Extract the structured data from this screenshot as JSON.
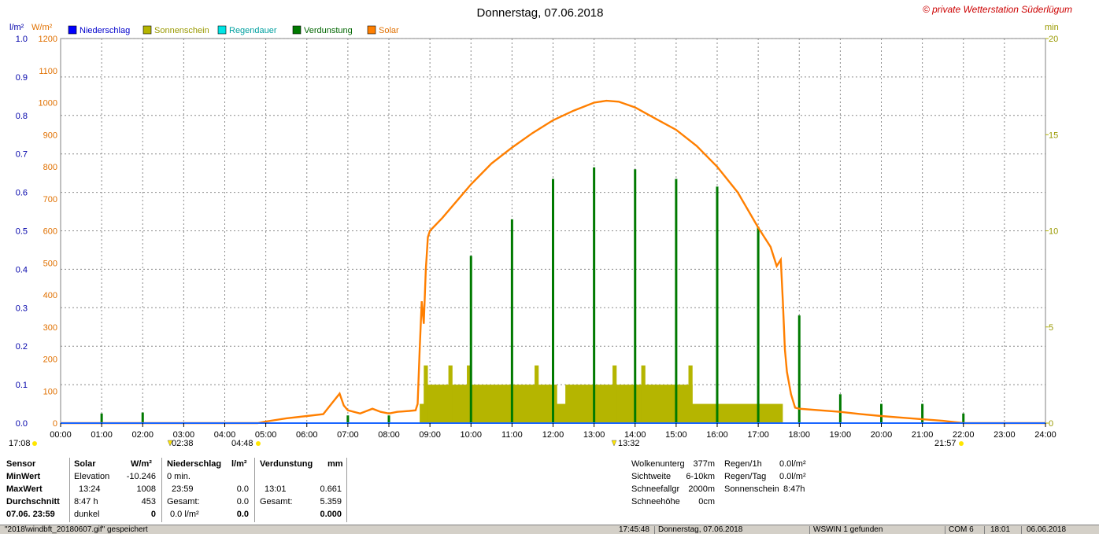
{
  "title": "Donnerstag, 07.06.2018",
  "copyright": "© private Wetterstation Süderlügum",
  "axes": {
    "left_outer_unit": "l/m²",
    "left_inner_unit": "W/m²",
    "right_unit": "min",
    "left_outer_ticks": [
      "0.0",
      "0.1",
      "0.2",
      "0.3",
      "0.4",
      "0.5",
      "0.6",
      "0.7",
      "0.8",
      "0.9",
      "1.0"
    ],
    "left_inner_ticks": [
      "0",
      "100",
      "200",
      "300",
      "400",
      "500",
      "600",
      "700",
      "800",
      "900",
      "1000",
      "1100",
      "1200"
    ],
    "right_ticks": [
      "0",
      "5",
      "10",
      "15",
      "20"
    ],
    "x_ticks": [
      "00:00",
      "01:00",
      "02:00",
      "03:00",
      "04:00",
      "05:00",
      "06:00",
      "07:00",
      "08:00",
      "09:00",
      "10:00",
      "11:00",
      "12:00",
      "13:00",
      "14:00",
      "15:00",
      "16:00",
      "17:00",
      "18:00",
      "19:00",
      "20:00",
      "21:00",
      "22:00",
      "23:00",
      "24:00"
    ]
  },
  "markers": {
    "moonset": "17:08",
    "moon_low": "02:38",
    "sunrise": "04:48",
    "moon_high": "13:32",
    "sunset": "21:57"
  },
  "colors": {
    "niederschlag": "#0000ff",
    "sonnenschein": "#b5b500",
    "regendauer": "#00e5e5",
    "verdunstung": "#007a00",
    "solar": "#ff7f00"
  },
  "chart_data": {
    "type": "line",
    "title": "Donnerstag, 07.06.2018",
    "x_unit": "hour of day",
    "xlim": [
      0,
      24
    ],
    "legend": [
      "Niederschlag",
      "Sonnenschein",
      "Regendauer",
      "Verdunstung",
      "Solar"
    ],
    "series": [
      {
        "name": "Solar",
        "axis": "W/m²",
        "ylim": [
          0,
          1200
        ],
        "points": [
          [
            0,
            0
          ],
          [
            4.8,
            0
          ],
          [
            5.0,
            5
          ],
          [
            5.5,
            15
          ],
          [
            6.0,
            22
          ],
          [
            6.4,
            28
          ],
          [
            6.6,
            60
          ],
          [
            6.8,
            92
          ],
          [
            6.9,
            55
          ],
          [
            7.0,
            40
          ],
          [
            7.3,
            30
          ],
          [
            7.6,
            45
          ],
          [
            7.8,
            35
          ],
          [
            8.0,
            30
          ],
          [
            8.2,
            35
          ],
          [
            8.5,
            38
          ],
          [
            8.65,
            40
          ],
          [
            8.7,
            60
          ],
          [
            8.75,
            230
          ],
          [
            8.8,
            380
          ],
          [
            8.85,
            310
          ],
          [
            8.9,
            480
          ],
          [
            8.95,
            580
          ],
          [
            9.0,
            600
          ],
          [
            9.3,
            640
          ],
          [
            9.7,
            700
          ],
          [
            10.0,
            745
          ],
          [
            10.5,
            810
          ],
          [
            11.0,
            860
          ],
          [
            11.5,
            905
          ],
          [
            12.0,
            945
          ],
          [
            12.5,
            975
          ],
          [
            13.0,
            1000
          ],
          [
            13.3,
            1006
          ],
          [
            13.6,
            1003
          ],
          [
            14.0,
            985
          ],
          [
            14.5,
            950
          ],
          [
            15.0,
            915
          ],
          [
            15.5,
            865
          ],
          [
            16.0,
            800
          ],
          [
            16.5,
            720
          ],
          [
            17.0,
            610
          ],
          [
            17.3,
            550
          ],
          [
            17.45,
            490
          ],
          [
            17.55,
            510
          ],
          [
            17.6,
            380
          ],
          [
            17.65,
            230
          ],
          [
            17.7,
            160
          ],
          [
            17.8,
            90
          ],
          [
            17.9,
            48
          ],
          [
            18.0,
            45
          ],
          [
            18.5,
            40
          ],
          [
            19.0,
            35
          ],
          [
            19.5,
            28
          ],
          [
            20.0,
            22
          ],
          [
            20.5,
            17
          ],
          [
            21.0,
            12
          ],
          [
            21.5,
            7
          ],
          [
            21.8,
            3
          ],
          [
            22.0,
            0
          ],
          [
            24,
            0
          ]
        ]
      },
      {
        "name": "Sonnenschein",
        "axis": "min",
        "ylim": [
          0,
          20
        ],
        "unit": "min",
        "segments": [
          {
            "from": 8.75,
            "to": 17.6,
            "value": 1
          },
          {
            "from": 8.85,
            "to": 12.1,
            "value": 2
          },
          {
            "from": 12.3,
            "to": 15.4,
            "value": 2
          },
          {
            "from": 8.85,
            "to": 8.95,
            "value": 3
          },
          {
            "from": 9.45,
            "to": 9.55,
            "value": 3
          },
          {
            "from": 9.9,
            "to": 9.98,
            "value": 3
          },
          {
            "from": 11.55,
            "to": 11.65,
            "value": 3
          },
          {
            "from": 13.45,
            "to": 13.55,
            "value": 3
          },
          {
            "from": 14.15,
            "to": 14.25,
            "value": 3
          },
          {
            "from": 15.3,
            "to": 15.4,
            "value": 3
          }
        ]
      },
      {
        "name": "Verdunstung",
        "axis": "min",
        "ylim": [
          0,
          20
        ],
        "spikes": [
          [
            1.0,
            0.5
          ],
          [
            2.0,
            0.55
          ],
          [
            7.0,
            0.4
          ],
          [
            8.0,
            0.4
          ],
          [
            10.0,
            8.7
          ],
          [
            11.0,
            10.6
          ],
          [
            12.0,
            12.7
          ],
          [
            13.0,
            13.3
          ],
          [
            14.0,
            13.2
          ],
          [
            15.0,
            12.7
          ],
          [
            16.0,
            12.3
          ],
          [
            17.0,
            10.2
          ],
          [
            18.0,
            5.6
          ],
          [
            19.0,
            1.5
          ],
          [
            20.0,
            1.0
          ],
          [
            21.0,
            1.0
          ],
          [
            22.0,
            0.5
          ]
        ]
      },
      {
        "name": "Niederschlag",
        "axis": "l/m²",
        "values": [
          0
        ]
      },
      {
        "name": "Regendauer",
        "axis": "min",
        "values": [
          0
        ]
      }
    ]
  },
  "stats": {
    "headers": {
      "sensor": "Sensor",
      "solar": "Solar",
      "solar_unit": "W/m²",
      "nied": "Niederschlag",
      "nied_unit": "l/m²",
      "verd": "Verdunstung",
      "verd_unit": "mm"
    },
    "row_labels": {
      "min": "MinWert",
      "max": "MaxWert",
      "avg": "Durchschnitt",
      "date": "07.06. 23:59"
    },
    "solar": {
      "min_label": "Elevation",
      "min_val": "-10.246",
      "max_label": "13:24",
      "max_val": "1008",
      "avg_label": "8:47 h",
      "avg_val": "453",
      "date_label": "dunkel",
      "date_val": "0"
    },
    "nied": {
      "min_label": "0 min.",
      "max_label": "23:59",
      "max_val": "0.0",
      "avg_label": "Gesamt:",
      "avg_val": "0.0",
      "date_label": "0.0 l/m²",
      "date_val": "0.0"
    },
    "verd": {
      "max_label": "13:01",
      "max_val": "0.661",
      "avg_label": "Gesamt:",
      "avg_val": "5.359",
      "date_val": "0.000"
    },
    "weather": [
      {
        "label": "Wolkenunterg",
        "value": "377m"
      },
      {
        "label": "Sichtweite",
        "value": "6-10km"
      },
      {
        "label": "Schneefallgr",
        "value": "2000m"
      },
      {
        "label": "Schneehöhe",
        "value": "0cm"
      }
    ],
    "rain": [
      {
        "label": "Regen/1h",
        "value": "0.0l/m²"
      },
      {
        "label": "Regen/Tag",
        "value": "0.0l/m²"
      },
      {
        "label": "Sonnenschein",
        "value": "8:47h"
      }
    ]
  },
  "statusbar": {
    "file": "\"2018\\windbft_20180607.gif\" gespeichert",
    "time": "17:45:48",
    "date": "Donnerstag, 07.06.2018",
    "found": "WSWIN 1 gefunden",
    "port": "COM 6",
    "clock": "18:01",
    "cur_date": "06.06.2018"
  }
}
